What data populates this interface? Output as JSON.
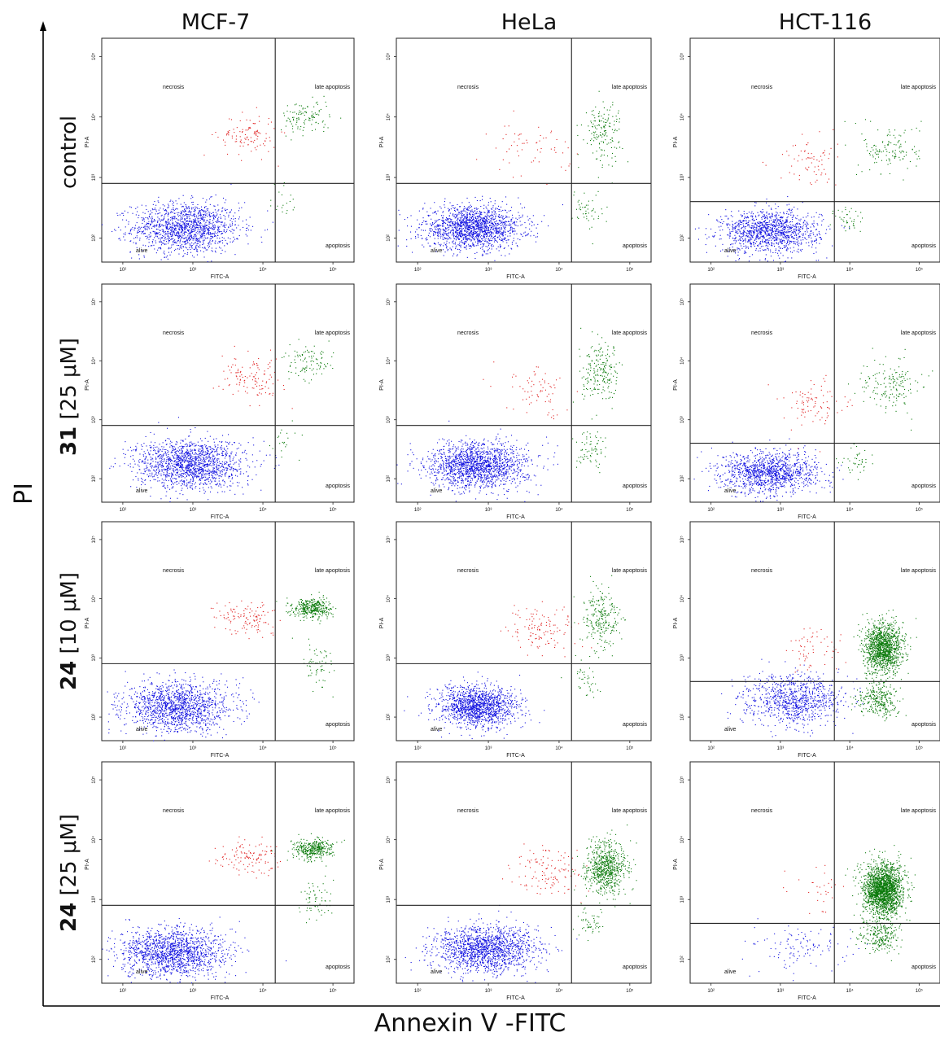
{
  "figure": {
    "y_axis_title": "PI",
    "x_axis_title": "Annexin V -FITC",
    "columns": [
      "MCF-7",
      "HeLa",
      "HCT-116"
    ],
    "rows": [
      {
        "compound": "",
        "treatment": "control"
      },
      {
        "compound": "31",
        "treatment": " [25 μM]"
      },
      {
        "compound": "24",
        "treatment": " [10 μM]"
      },
      {
        "compound": "24",
        "treatment": " [25 μM]"
      }
    ],
    "panel_text": {
      "x_label": "FITC-A",
      "y_label": "PI-A",
      "q_upper_left": "necrosis",
      "q_upper_right": "late apoptosis",
      "q_lower_right": "apoptosis",
      "q_lower_left": "alive",
      "x_ticks": [
        "10²",
        "10³",
        "10⁴",
        "10⁵"
      ],
      "y_ticks": [
        "10²",
        "10³",
        "10⁴",
        "10⁵"
      ]
    },
    "colors": {
      "alive": "#1010e0",
      "necrosis": "#e02020",
      "late_apoptosis": "#0a7a0a",
      "apoptosis": "#0a7a0a"
    }
  },
  "chart_data": {
    "type": "scatter",
    "xlabel": "FITC-A",
    "ylabel": "PI-A",
    "xscale": "log",
    "yscale": "log",
    "xlim": [
      50,
      200000
    ],
    "ylim": [
      40,
      200000
    ],
    "panels": [
      {
        "cell_line": "MCF-7",
        "treatment": "control",
        "gate_x": 15000,
        "gate_y": 800,
        "populations": [
          {
            "name": "alive",
            "center": [
              800,
              150
            ],
            "spread": [
              0.55,
              0.3
            ],
            "n": 1400
          },
          {
            "name": "necrosis",
            "center": [
              6000,
              5000
            ],
            "spread": [
              0.3,
              0.25
            ],
            "n": 110
          },
          {
            "name": "late apoptosis",
            "center": [
              40000,
              10000
            ],
            "spread": [
              0.25,
              0.2
            ],
            "n": 110
          },
          {
            "name": "apoptosis",
            "center": [
              20000,
              400
            ],
            "spread": [
              0.15,
              0.3
            ],
            "n": 20
          }
        ]
      },
      {
        "cell_line": "HeLa",
        "treatment": "control",
        "gate_x": 15000,
        "gate_y": 800,
        "populations": [
          {
            "name": "alive",
            "center": [
              600,
              150
            ],
            "spread": [
              0.5,
              0.25
            ],
            "n": 1600
          },
          {
            "name": "necrosis",
            "center": [
              4000,
              3000
            ],
            "spread": [
              0.4,
              0.3
            ],
            "n": 60
          },
          {
            "name": "late apoptosis",
            "center": [
              40000,
              6000
            ],
            "spread": [
              0.2,
              0.35
            ],
            "n": 160
          },
          {
            "name": "apoptosis",
            "center": [
              25000,
              300
            ],
            "spread": [
              0.15,
              0.25
            ],
            "n": 50
          }
        ]
      },
      {
        "cell_line": "HCT-116",
        "treatment": "control",
        "gate_x": 6000,
        "gate_y": 400,
        "populations": [
          {
            "name": "alive",
            "center": [
              700,
              130
            ],
            "spread": [
              0.5,
              0.25
            ],
            "n": 1200
          },
          {
            "name": "necrosis",
            "center": [
              2500,
              1800
            ],
            "spread": [
              0.3,
              0.3
            ],
            "n": 70
          },
          {
            "name": "late apoptosis",
            "center": [
              40000,
              3000
            ],
            "spread": [
              0.3,
              0.3
            ],
            "n": 130
          },
          {
            "name": "apoptosis",
            "center": [
              10000,
              200
            ],
            "spread": [
              0.15,
              0.2
            ],
            "n": 40
          }
        ]
      },
      {
        "cell_line": "MCF-7",
        "treatment": "31 [25 μM]",
        "gate_x": 15000,
        "gate_y": 800,
        "populations": [
          {
            "name": "alive",
            "center": [
              900,
              180
            ],
            "spread": [
              0.55,
              0.3
            ],
            "n": 1500
          },
          {
            "name": "necrosis",
            "center": [
              7000,
              5000
            ],
            "spread": [
              0.3,
              0.25
            ],
            "n": 120
          },
          {
            "name": "late apoptosis",
            "center": [
              45000,
              9000
            ],
            "spread": [
              0.25,
              0.2
            ],
            "n": 100
          },
          {
            "name": "apoptosis",
            "center": [
              20000,
              500
            ],
            "spread": [
              0.15,
              0.3
            ],
            "n": 20
          }
        ]
      },
      {
        "cell_line": "HeLa",
        "treatment": "31 [25 μM]",
        "gate_x": 15000,
        "gate_y": 800,
        "populations": [
          {
            "name": "alive",
            "center": [
              700,
              170
            ],
            "spread": [
              0.5,
              0.28
            ],
            "n": 1600
          },
          {
            "name": "necrosis",
            "center": [
              5000,
              3000
            ],
            "spread": [
              0.35,
              0.3
            ],
            "n": 70
          },
          {
            "name": "late apoptosis",
            "center": [
              40000,
              6000
            ],
            "spread": [
              0.2,
              0.35
            ],
            "n": 200
          },
          {
            "name": "apoptosis",
            "center": [
              28000,
              350
            ],
            "spread": [
              0.15,
              0.25
            ],
            "n": 70
          }
        ]
      },
      {
        "cell_line": "HCT-116",
        "treatment": "31 [25 μM]",
        "gate_x": 6000,
        "gate_y": 400,
        "populations": [
          {
            "name": "alive",
            "center": [
              700,
              130
            ],
            "spread": [
              0.5,
              0.25
            ],
            "n": 1200
          },
          {
            "name": "necrosis",
            "center": [
              3000,
              2000
            ],
            "spread": [
              0.3,
              0.3
            ],
            "n": 90
          },
          {
            "name": "late apoptosis",
            "center": [
              40000,
              4000
            ],
            "spread": [
              0.3,
              0.3
            ],
            "n": 160
          },
          {
            "name": "apoptosis",
            "center": [
              12000,
              200
            ],
            "spread": [
              0.15,
              0.2
            ],
            "n": 40
          }
        ]
      },
      {
        "cell_line": "MCF-7",
        "treatment": "24 [10 μM]",
        "gate_x": 15000,
        "gate_y": 800,
        "populations": [
          {
            "name": "alive",
            "center": [
              600,
              150
            ],
            "spread": [
              0.55,
              0.3
            ],
            "n": 1400
          },
          {
            "name": "necrosis",
            "center": [
              6000,
              5000
            ],
            "spread": [
              0.3,
              0.2
            ],
            "n": 120
          },
          {
            "name": "late apoptosis",
            "center": [
              50000,
              7000
            ],
            "spread": [
              0.2,
              0.12
            ],
            "n": 380
          },
          {
            "name": "apoptosis",
            "center": [
              60000,
              800
            ],
            "spread": [
              0.15,
              0.3
            ],
            "n": 60
          }
        ]
      },
      {
        "cell_line": "HeLa",
        "treatment": "24 [10 μM]",
        "gate_x": 15000,
        "gate_y": 800,
        "populations": [
          {
            "name": "alive",
            "center": [
              700,
              150
            ],
            "spread": [
              0.4,
              0.25
            ],
            "n": 1400
          },
          {
            "name": "necrosis",
            "center": [
              6000,
              3000
            ],
            "spread": [
              0.35,
              0.3
            ],
            "n": 120
          },
          {
            "name": "late apoptosis",
            "center": [
              40000,
              5000
            ],
            "spread": [
              0.2,
              0.35
            ],
            "n": 240
          },
          {
            "name": "apoptosis",
            "center": [
              25000,
              400
            ],
            "spread": [
              0.15,
              0.25
            ],
            "n": 40
          }
        ]
      },
      {
        "cell_line": "HCT-116",
        "treatment": "24 [10 μM]",
        "gate_x": 6000,
        "gate_y": 400,
        "populations": [
          {
            "name": "alive",
            "center": [
              1500,
              200
            ],
            "spread": [
              0.5,
              0.3
            ],
            "n": 900
          },
          {
            "name": "necrosis",
            "center": [
              3000,
              1500
            ],
            "spread": [
              0.3,
              0.3
            ],
            "n": 60
          },
          {
            "name": "late apoptosis",
            "center": [
              30000,
              1500
            ],
            "spread": [
              0.2,
              0.3
            ],
            "n": 1300
          },
          {
            "name": "apoptosis",
            "center": [
              25000,
              200
            ],
            "spread": [
              0.2,
              0.2
            ],
            "n": 300
          }
        ]
      },
      {
        "cell_line": "MCF-7",
        "treatment": "24 [25 μM]",
        "gate_x": 15000,
        "gate_y": 800,
        "populations": [
          {
            "name": "alive",
            "center": [
              500,
              130
            ],
            "spread": [
              0.55,
              0.3
            ],
            "n": 1500
          },
          {
            "name": "necrosis",
            "center": [
              6000,
              5000
            ],
            "spread": [
              0.3,
              0.2
            ],
            "n": 120
          },
          {
            "name": "late apoptosis",
            "center": [
              50000,
              7000
            ],
            "spread": [
              0.2,
              0.12
            ],
            "n": 360
          },
          {
            "name": "apoptosis",
            "center": [
              60000,
              900
            ],
            "spread": [
              0.15,
              0.3
            ],
            "n": 60
          }
        ]
      },
      {
        "cell_line": "HeLa",
        "treatment": "24 [25 μM]",
        "gate_x": 15000,
        "gate_y": 800,
        "populations": [
          {
            "name": "alive",
            "center": [
              900,
              150
            ],
            "spread": [
              0.5,
              0.28
            ],
            "n": 1500
          },
          {
            "name": "necrosis",
            "center": [
              7000,
              3000
            ],
            "spread": [
              0.35,
              0.3
            ],
            "n": 120
          },
          {
            "name": "late apoptosis",
            "center": [
              45000,
              3500
            ],
            "spread": [
              0.22,
              0.3
            ],
            "n": 700
          },
          {
            "name": "apoptosis",
            "center": [
              30000,
              400
            ],
            "spread": [
              0.15,
              0.2
            ],
            "n": 50
          }
        ]
      },
      {
        "cell_line": "HCT-116",
        "treatment": "24 [25 μM]",
        "gate_x": 6000,
        "gate_y": 400,
        "populations": [
          {
            "name": "alive",
            "center": [
              2000,
              150
            ],
            "spread": [
              0.5,
              0.3
            ],
            "n": 120
          },
          {
            "name": "necrosis",
            "center": [
              3000,
              1500
            ],
            "spread": [
              0.3,
              0.3
            ],
            "n": 30
          },
          {
            "name": "late apoptosis",
            "center": [
              30000,
              1500
            ],
            "spread": [
              0.2,
              0.3
            ],
            "n": 2000
          },
          {
            "name": "apoptosis",
            "center": [
              28000,
              250
            ],
            "spread": [
              0.2,
              0.2
            ],
            "n": 250
          }
        ]
      }
    ]
  }
}
